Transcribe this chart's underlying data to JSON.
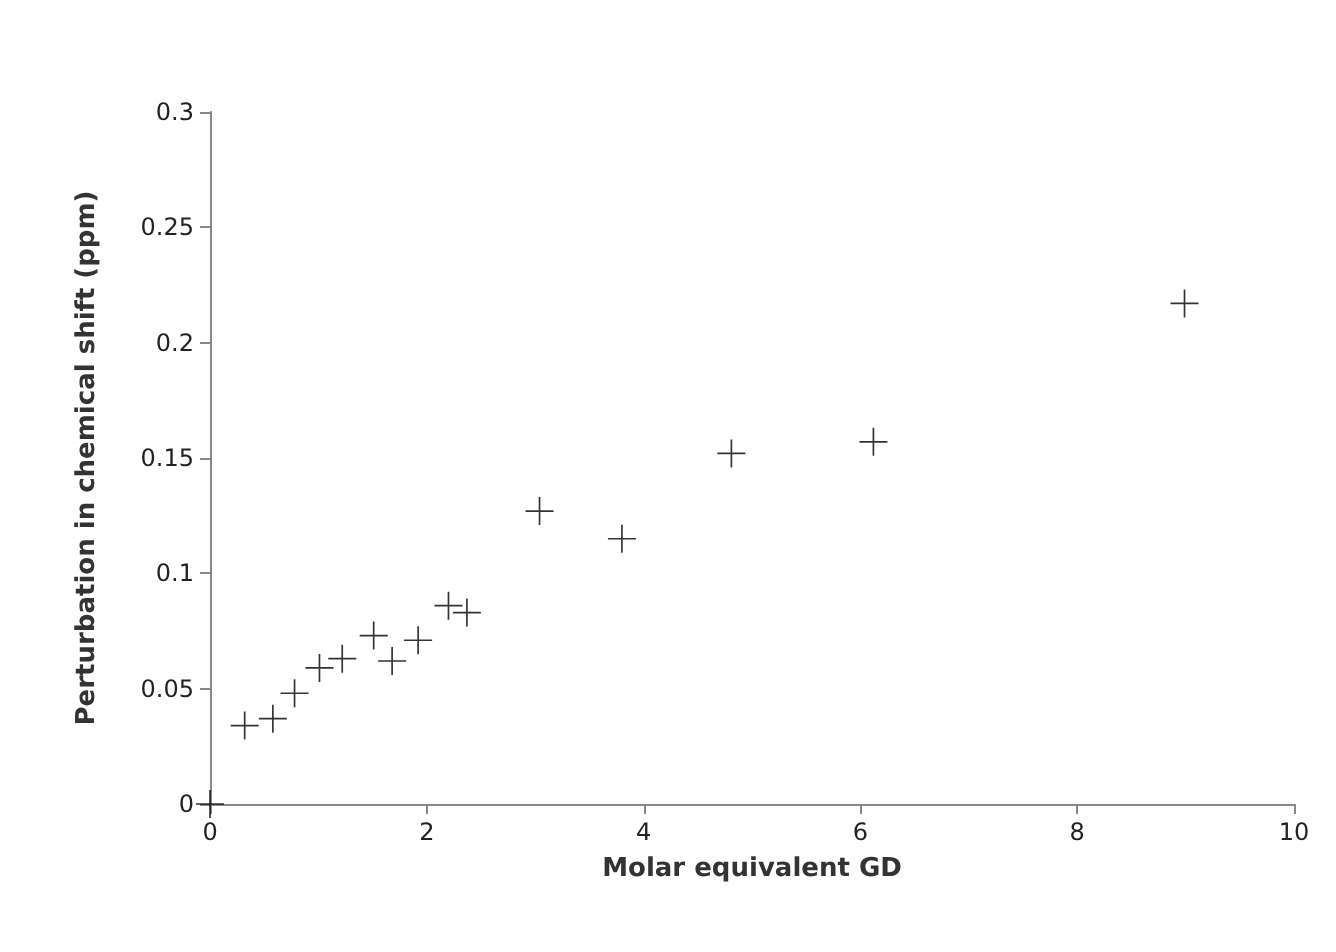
{
  "chart_data": {
    "type": "scatter",
    "xlabel": "Molar equivalent GD",
    "ylabel": "Perturbation in chemical shift (ppm)",
    "x": [
      0,
      0.32,
      0.58,
      0.78,
      1.01,
      1.22,
      1.51,
      1.68,
      1.92,
      2.2,
      2.37,
      3.04,
      3.8,
      4.81,
      6.12,
      8.99
    ],
    "values": [
      0,
      0.034,
      0.037,
      0.048,
      0.059,
      0.063,
      0.073,
      0.062,
      0.071,
      0.086,
      0.083,
      0.127,
      0.115,
      0.152,
      0.157,
      0.217
    ],
    "color": "#000000",
    "marker": "cross",
    "xlim": [
      0,
      10
    ],
    "xticks": [
      0,
      2,
      4,
      6,
      8,
      10
    ],
    "ylim": [
      0,
      0.3
    ],
    "yticks": [
      0,
      0.05,
      0.1,
      0.15,
      0.2,
      0.25,
      0.3
    ]
  }
}
